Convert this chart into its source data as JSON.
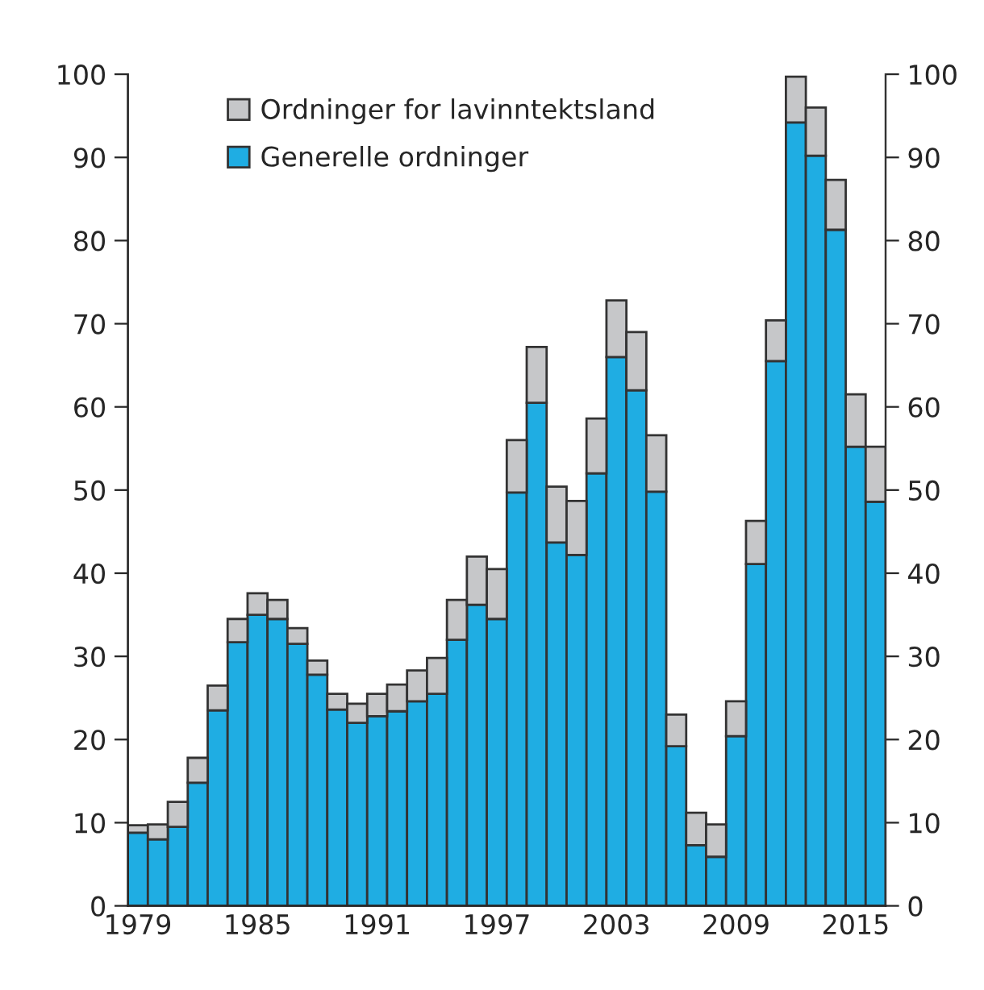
{
  "chart_data": {
    "type": "bar",
    "stacked": true,
    "categories": [
      "1979",
      null,
      null,
      null,
      null,
      null,
      "1985",
      null,
      null,
      null,
      null,
      null,
      "1991",
      null,
      null,
      null,
      null,
      null,
      "1997",
      null,
      null,
      null,
      null,
      null,
      "2003",
      null,
      null,
      null,
      null,
      null,
      "2009",
      null,
      null,
      null,
      null,
      null,
      "2015",
      null
    ],
    "series": [
      {
        "name": "Generelle ordninger",
        "color": "#1fade3",
        "values": [
          8.8,
          8.0,
          9.5,
          14.8,
          23.5,
          31.7,
          35.0,
          34.5,
          31.5,
          27.8,
          23.6,
          22.0,
          22.8,
          23.4,
          24.6,
          25.5,
          32.0,
          36.2,
          34.5,
          49.7,
          60.5,
          43.7,
          42.2,
          52.0,
          66.0,
          62.0,
          49.8,
          19.2,
          7.3,
          5.9,
          20.4,
          41.1,
          65.5,
          94.2,
          90.2,
          81.3,
          55.2,
          48.6
        ]
      },
      {
        "name": "Ordninger for lavinntektsland",
        "color": "#c6c7c9",
        "values": [
          0.9,
          1.8,
          3.0,
          3.0,
          3.0,
          2.8,
          2.6,
          2.3,
          1.9,
          1.7,
          1.9,
          2.3,
          2.7,
          3.2,
          3.7,
          4.3,
          4.8,
          5.8,
          6.0,
          6.3,
          6.7,
          6.7,
          6.5,
          6.6,
          6.8,
          7.0,
          6.8,
          3.8,
          3.9,
          3.9,
          4.2,
          5.2,
          4.9,
          5.5,
          5.8,
          6.0,
          6.3,
          6.6
        ]
      }
    ],
    "ylim": [
      0,
      100
    ],
    "yticks": [
      0,
      10,
      20,
      30,
      40,
      50,
      60,
      70,
      80,
      90,
      100
    ],
    "y2lim": [
      0,
      100
    ],
    "y2ticks": [
      0,
      10,
      20,
      30,
      40,
      50,
      60,
      70,
      80,
      90,
      100
    ],
    "grid": false,
    "legend": "top left"
  }
}
